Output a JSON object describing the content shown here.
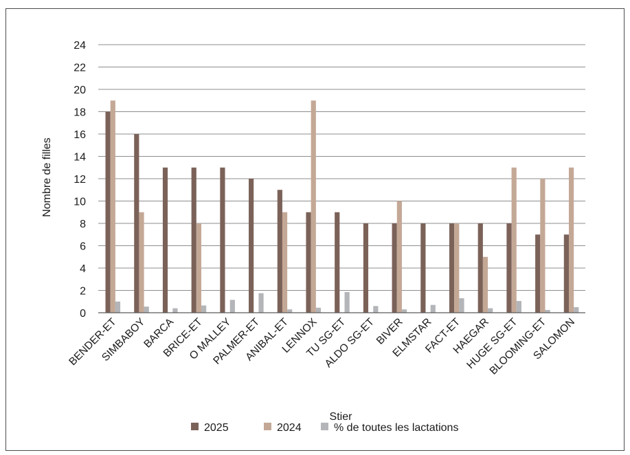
{
  "chart_data": {
    "type": "bar",
    "xlabel": "Stier",
    "ylabel": "Nombre de filles",
    "ylim": [
      0,
      24
    ],
    "yticks": [
      0,
      2,
      4,
      6,
      8,
      10,
      12,
      14,
      16,
      18,
      20,
      22,
      24
    ],
    "grid": true,
    "legend_position": "bottom",
    "categories": [
      "BENDER-ET",
      "SIMBABOY",
      "BARCA",
      "BRICE-ET",
      "O MALLEY",
      "PALMER-ET",
      "ANIBAL-ET",
      "LENNOX",
      "TU SG-ET",
      "ALDO SG-ET",
      "BIVER",
      "ELMSTAR",
      "FACT-ET",
      "HAEGAR",
      "HUGE SG-ET",
      "BLOOMING-ET",
      "SALOMON"
    ],
    "series": [
      {
        "name": "2025",
        "color": "#7b6259",
        "values": [
          18,
          16,
          13,
          13,
          13,
          12,
          11,
          9,
          9,
          8,
          8,
          8,
          8,
          8,
          8,
          7,
          7
        ]
      },
      {
        "name": "2024",
        "color": "#c4a896",
        "values": [
          19,
          9,
          0,
          8,
          0,
          0,
          9,
          19,
          0,
          0,
          10,
          0,
          8,
          5,
          13,
          12,
          13
        ]
      },
      {
        "name": "% de toutes les lactations",
        "color": "#b3b5b8",
        "values": [
          1.0,
          0.55,
          0.4,
          0.65,
          1.15,
          1.75,
          0.3,
          0.45,
          1.85,
          0.6,
          0.3,
          0.7,
          1.3,
          0.4,
          1.05,
          0.25,
          0.5
        ]
      }
    ]
  }
}
